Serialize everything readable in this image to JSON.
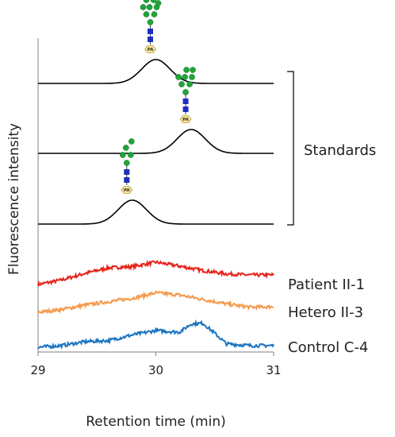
{
  "chart_data": {
    "type": "line",
    "xlabel": "Retention time (min)",
    "ylabel": "Fluorescence intensity",
    "xlim": [
      29,
      31
    ],
    "x_ticks": [
      "29",
      "30",
      "31"
    ],
    "bracket_label": "Standards",
    "glycan_tag": "PA",
    "series": [
      {
        "kind": "standard",
        "peak_center": 30.0,
        "peak_height": 0.1,
        "peak_width": 0.12,
        "glycan": {
          "upper_green": 4,
          "lower_green": 5
        }
      },
      {
        "kind": "standard",
        "peak_center": 30.3,
        "peak_height": 0.1,
        "peak_width": 0.12,
        "glycan": {
          "upper_green": 3,
          "lower_green": 4
        }
      },
      {
        "kind": "standard",
        "peak_center": 29.8,
        "peak_height": 0.1,
        "peak_width": 0.12,
        "glycan": {
          "upper_green": 3,
          "lower_green": 3
        }
      },
      {
        "kind": "sample",
        "name": "Patient II-1",
        "color": "#e8241a",
        "x": [
          29.0,
          29.2,
          29.4,
          29.6,
          29.8,
          30.0,
          30.2,
          30.4,
          30.6,
          30.8,
          31.0
        ],
        "values": [
          0.0,
          0.008,
          0.02,
          0.03,
          0.032,
          0.04,
          0.033,
          0.025,
          0.019,
          0.017,
          0.017
        ]
      },
      {
        "kind": "sample",
        "name": "Hetero II-3",
        "color": "#f59a4a",
        "x": [
          29.0,
          29.2,
          29.4,
          29.6,
          29.8,
          30.0,
          30.2,
          30.4,
          30.6,
          30.8,
          31.0
        ],
        "values": [
          0.0,
          0.005,
          0.013,
          0.019,
          0.025,
          0.035,
          0.031,
          0.023,
          0.015,
          0.009,
          0.01
        ]
      },
      {
        "kind": "sample",
        "name": "Control C-4",
        "color": "#1a74c2",
        "x": [
          29.0,
          29.2,
          29.4,
          29.6,
          29.8,
          30.0,
          30.2,
          30.3,
          30.4,
          30.5,
          30.6,
          30.8,
          31.0
        ],
        "values": [
          0.0,
          0.003,
          0.01,
          0.012,
          0.022,
          0.03,
          0.027,
          0.042,
          0.043,
          0.025,
          0.006,
          0.003,
          0.003
        ]
      }
    ]
  }
}
